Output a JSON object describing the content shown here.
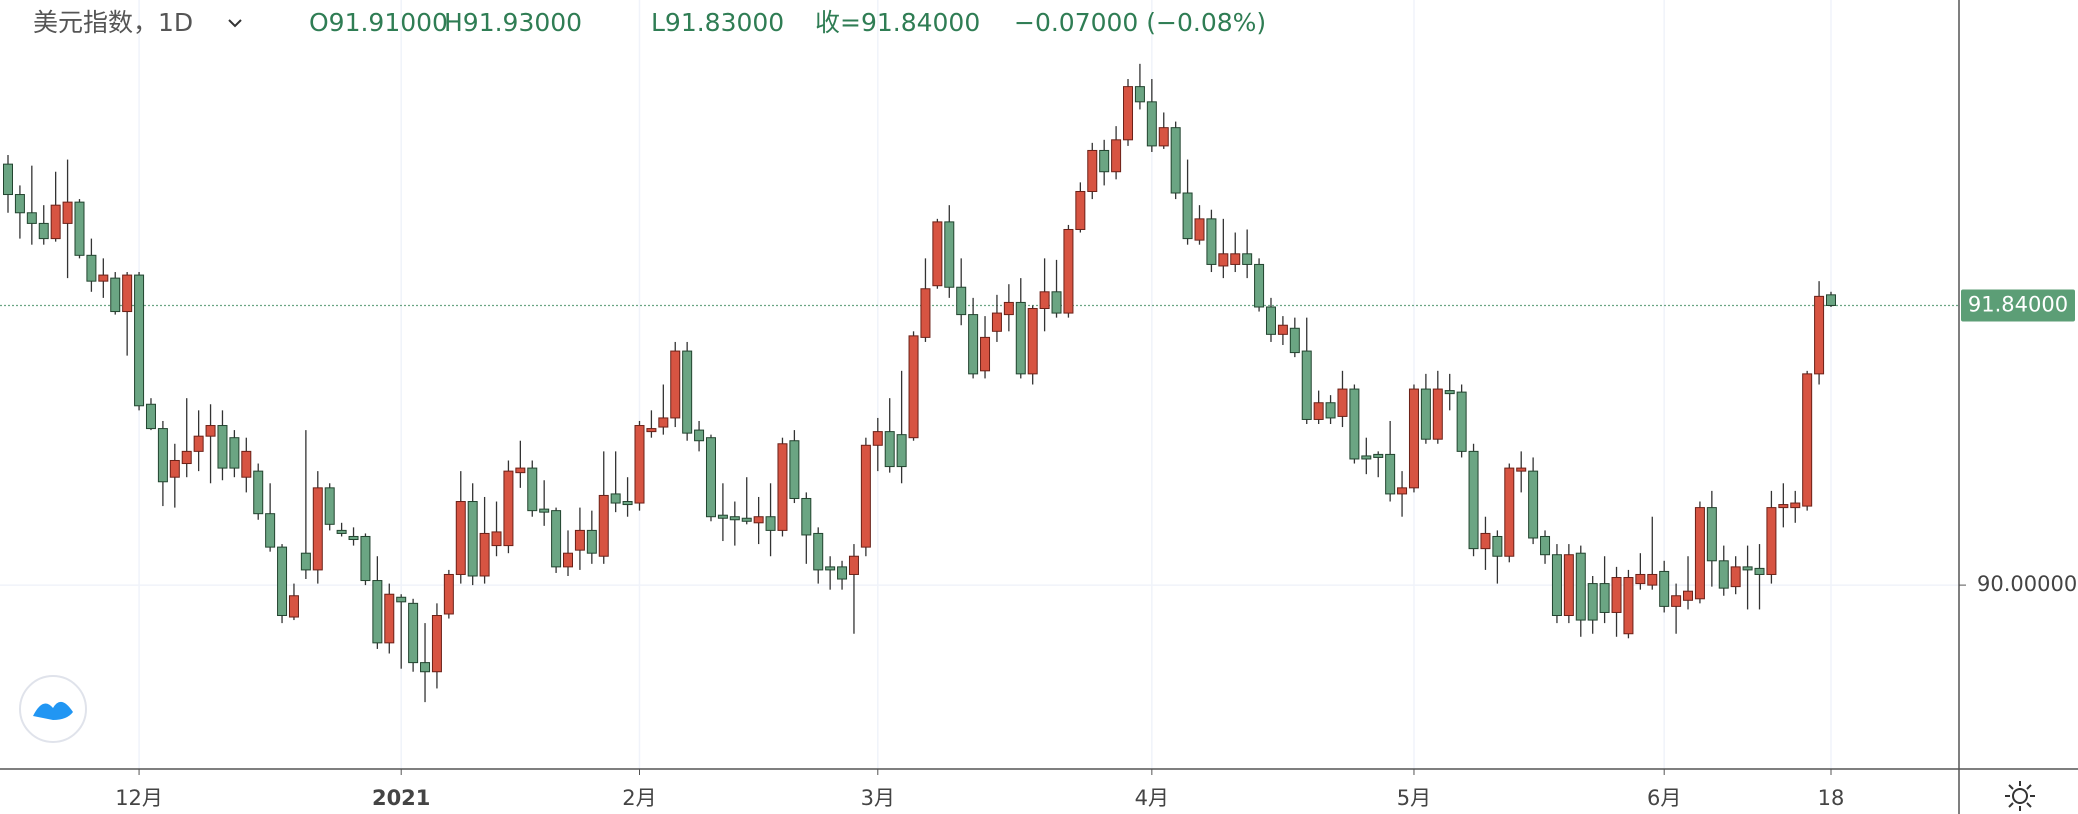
{
  "chart_data": {
    "type": "candlestick",
    "title": "美元指数，1D",
    "ohlc_labels": [
      "O91.91000",
      "H91.93000",
      "L91.83000",
      "收=91.84000",
      "−0.07000 (−0.08%)"
    ],
    "categories": [
      null,
      null,
      null,
      null,
      null,
      null,
      null,
      null,
      null,
      null,
      null,
      "12月",
      null,
      null,
      null,
      null,
      null,
      null,
      null,
      null,
      null,
      null,
      null,
      null,
      null,
      null,
      null,
      null,
      null,
      null,
      null,
      null,
      null,
      "2021",
      null,
      null,
      null,
      null,
      null,
      null,
      null,
      null,
      null,
      null,
      null,
      null,
      null,
      null,
      null,
      null,
      null,
      null,
      null,
      "2月",
      null,
      null,
      null,
      null,
      null,
      null,
      null,
      null,
      null,
      null,
      null,
      null,
      null,
      null,
      null,
      null,
      null,
      null,
      null,
      "3月",
      null,
      null,
      null,
      null,
      null,
      null,
      null,
      null,
      null,
      null,
      null,
      null,
      null,
      null,
      null,
      null,
      null,
      null,
      null,
      null,
      null,
      null,
      "4月",
      null,
      null,
      null,
      null,
      null,
      null,
      null,
      null,
      null,
      null,
      null,
      null,
      null,
      null,
      null,
      null,
      null,
      null,
      null,
      null,
      null,
      "5月",
      null,
      null,
      null,
      null,
      null,
      null,
      null,
      null,
      null,
      null,
      null,
      null,
      null,
      null,
      null,
      null,
      null,
      null,
      null,
      null,
      "6月",
      null,
      null,
      null,
      null,
      null,
      null,
      null,
      null,
      null,
      null,
      null,
      null,
      null,
      "18"
    ],
    "open": [
      92.77,
      92.57,
      92.45,
      92.38,
      92.28,
      92.38,
      92.52,
      92.17,
      92.0,
      92.02,
      91.8,
      92.04,
      91.19,
      91.03,
      90.71,
      90.8,
      90.88,
      90.98,
      91.05,
      90.97,
      90.71,
      90.75,
      90.47,
      90.25,
      89.79,
      90.21,
      90.1,
      90.64,
      90.36,
      90.32,
      90.32,
      90.03,
      89.62,
      89.92,
      89.88,
      89.49,
      89.43,
      89.81,
      90.07,
      90.55,
      90.06,
      90.26,
      90.26,
      90.74,
      90.77,
      90.5,
      90.49,
      90.12,
      90.23,
      90.36,
      90.19,
      90.6,
      90.55,
      90.54,
      91.01,
      91.04,
      91.1,
      91.54,
      91.02,
      90.97,
      90.46,
      90.45,
      90.44,
      90.41,
      90.45,
      90.36,
      90.95,
      90.57,
      90.34,
      90.12,
      90.12,
      90.07,
      90.25,
      90.92,
      91.01,
      90.99,
      90.97,
      91.63,
      91.97,
      92.39,
      91.96,
      91.78,
      91.41,
      91.67,
      91.78,
      91.86,
      91.39,
      91.82,
      91.93,
      91.79,
      92.34,
      92.59,
      92.86,
      92.72,
      92.93,
      93.28,
      93.18,
      92.89,
      93.01,
      92.58,
      92.27,
      92.41,
      92.1,
      92.11,
      92.18,
      92.11,
      91.83,
      91.65,
      91.69,
      91.54,
      91.09,
      91.2,
      91.11,
      91.29,
      90.85,
      90.86,
      90.86,
      90.6,
      90.64,
      91.29,
      90.96,
      91.28,
      91.27,
      90.88,
      90.24,
      90.32,
      90.19,
      90.75,
      90.75,
      90.32,
      90.2,
      89.8,
      90.21,
      90.01,
      90.01,
      89.82,
      89.68,
      90.01,
      90.0,
      90.09,
      89.86,
      89.9,
      89.91,
      90.51,
      90.16,
      89.99,
      90.12,
      90.11,
      90.07,
      90.51,
      90.51,
      90.52,
      91.39,
      91.91
    ],
    "high": [
      92.83,
      92.63,
      92.76,
      92.5,
      92.72,
      92.8,
      92.54,
      92.28,
      92.15,
      92.06,
      92.06,
      92.06,
      91.23,
      91.08,
      90.93,
      91.23,
      91.15,
      91.19,
      91.15,
      91.02,
      90.97,
      90.8,
      90.67,
      90.27,
      90.01,
      91.02,
      90.75,
      90.67,
      90.41,
      90.38,
      90.34,
      90.19,
      90.01,
      89.94,
      89.91,
      89.75,
      89.88,
      90.1,
      90.75,
      90.67,
      90.58,
      90.55,
      90.82,
      90.95,
      90.82,
      90.69,
      90.51,
      90.36,
      90.51,
      90.49,
      90.88,
      90.88,
      90.71,
      91.08,
      91.15,
      91.32,
      91.6,
      91.6,
      91.08,
      90.99,
      90.67,
      90.55,
      90.71,
      90.58,
      90.67,
      90.97,
      91.02,
      90.61,
      90.38,
      90.19,
      90.16,
      90.27,
      90.97,
      91.1,
      91.23,
      91.41,
      91.67,
      92.15,
      92.41,
      92.5,
      92.15,
      91.89,
      91.77,
      91.91,
      91.98,
      92.02,
      91.84,
      92.15,
      92.14,
      92.37,
      92.65,
      92.91,
      92.93,
      93.02,
      93.33,
      93.43,
      93.33,
      93.11,
      93.05,
      92.8,
      92.5,
      92.47,
      92.41,
      92.32,
      92.34,
      92.15,
      91.89,
      91.77,
      91.76,
      91.76,
      91.28,
      91.25,
      91.41,
      91.32,
      90.97,
      90.88,
      91.08,
      90.75,
      91.32,
      91.39,
      91.41,
      91.39,
      91.32,
      90.93,
      90.45,
      90.36,
      90.8,
      90.88,
      90.84,
      90.36,
      90.27,
      90.27,
      90.26,
      90.06,
      90.19,
      90.12,
      90.1,
      90.21,
      90.45,
      90.16,
      90.01,
      90.19,
      90.55,
      90.62,
      90.26,
      90.19,
      90.26,
      90.27,
      90.62,
      90.67,
      90.62,
      91.41,
      92.0,
      91.93
    ],
    "low": [
      92.45,
      92.28,
      92.24,
      92.24,
      92.26,
      92.02,
      92.15,
      91.93,
      91.89,
      91.78,
      91.51,
      91.15,
      91.02,
      90.52,
      90.51,
      90.71,
      90.75,
      90.67,
      90.69,
      90.71,
      90.61,
      90.43,
      90.22,
      89.75,
      89.77,
      90.04,
      90.01,
      90.36,
      90.32,
      90.26,
      90.0,
      89.58,
      89.55,
      89.45,
      89.43,
      89.23,
      89.32,
      89.78,
      90.01,
      90.0,
      90.01,
      90.19,
      90.21,
      90.64,
      90.45,
      90.39,
      90.08,
      90.06,
      90.1,
      90.14,
      90.14,
      90.48,
      90.45,
      90.49,
      90.97,
      90.99,
      91.04,
      90.95,
      90.88,
      90.42,
      90.29,
      90.26,
      90.4,
      90.27,
      90.19,
      90.32,
      90.54,
      90.14,
      90.01,
      89.97,
      89.97,
      89.68,
      90.19,
      90.75,
      90.74,
      90.67,
      90.95,
      91.6,
      91.95,
      91.89,
      91.71,
      91.36,
      91.36,
      91.6,
      91.67,
      91.36,
      91.32,
      91.67,
      91.76,
      91.76,
      92.32,
      92.54,
      92.63,
      92.67,
      92.89,
      93.13,
      92.85,
      92.87,
      92.54,
      92.24,
      92.24,
      92.06,
      92.02,
      92.06,
      92.02,
      91.8,
      91.6,
      91.58,
      91.5,
      91.06,
      91.06,
      91.06,
      91.04,
      90.8,
      90.73,
      90.71,
      90.55,
      90.45,
      90.61,
      90.93,
      90.93,
      91.15,
      90.84,
      90.19,
      90.1,
      90.01,
      90.15,
      90.61,
      90.27,
      90.14,
      89.75,
      89.75,
      89.66,
      89.68,
      89.75,
      89.66,
      89.65,
      89.97,
      89.97,
      89.82,
      89.68,
      89.84,
      89.88,
      89.99,
      89.93,
      89.94,
      89.84,
      89.84,
      90.01,
      90.38,
      90.41,
      90.49,
      91.32,
      91.83
    ],
    "close": [
      92.57,
      92.45,
      92.38,
      92.28,
      92.5,
      92.52,
      92.17,
      92.0,
      92.04,
      91.8,
      92.04,
      91.18,
      91.03,
      90.68,
      90.82,
      90.88,
      90.98,
      91.05,
      90.77,
      90.77,
      90.88,
      90.47,
      90.25,
      89.8,
      89.93,
      90.1,
      90.64,
      90.4,
      90.34,
      90.3,
      90.03,
      89.62,
      89.94,
      89.89,
      89.49,
      89.43,
      89.8,
      90.07,
      90.55,
      90.06,
      90.34,
      90.35,
      90.75,
      90.77,
      90.49,
      90.48,
      90.12,
      90.21,
      90.36,
      90.21,
      90.59,
      90.54,
      90.53,
      91.05,
      91.03,
      91.1,
      91.54,
      91.0,
      90.95,
      90.45,
      90.44,
      90.43,
      90.42,
      90.45,
      90.36,
      90.93,
      90.57,
      90.33,
      90.1,
      90.1,
      90.04,
      90.19,
      90.92,
      91.01,
      90.78,
      90.78,
      91.64,
      91.95,
      92.39,
      91.96,
      91.78,
      91.39,
      91.63,
      91.79,
      91.86,
      91.39,
      91.82,
      91.93,
      91.79,
      92.34,
      92.59,
      92.86,
      92.72,
      92.93,
      93.28,
      93.18,
      92.89,
      93.01,
      92.58,
      92.28,
      92.41,
      92.11,
      92.18,
      92.18,
      92.11,
      91.83,
      91.65,
      91.71,
      91.53,
      91.09,
      91.2,
      91.1,
      91.29,
      90.83,
      90.83,
      90.84,
      90.6,
      90.64,
      91.29,
      90.96,
      91.29,
      91.26,
      90.88,
      90.24,
      90.34,
      90.19,
      90.77,
      90.77,
      90.31,
      90.2,
      89.8,
      90.2,
      89.77,
      89.77,
      89.82,
      90.05,
      90.05,
      90.07,
      90.07,
      89.86,
      89.93,
      89.96,
      90.51,
      90.16,
      89.98,
      90.12,
      90.1,
      90.07,
      90.51,
      90.53,
      90.54,
      91.39,
      91.9,
      91.84
    ],
    "last_price_label": "91.84000",
    "ylim": [
      88.79,
      93.85
    ],
    "yticks": [
      {
        "value": 90,
        "label": "90.00000"
      }
    ],
    "up_color": "#d75442",
    "down_color": "#6ba583",
    "grid": true
  }
}
